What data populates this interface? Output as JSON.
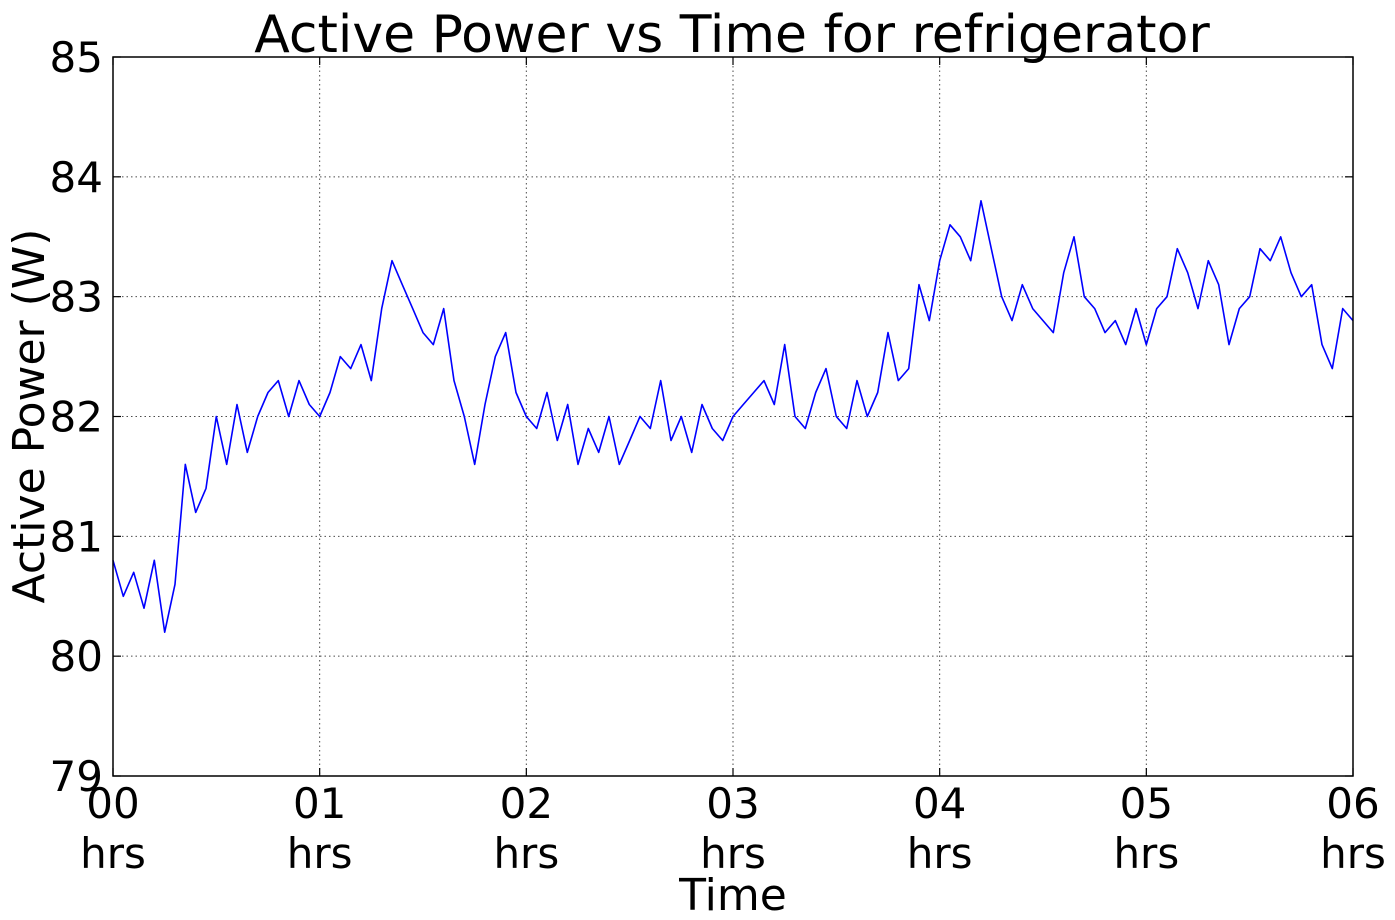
{
  "chart_data": {
    "type": "line",
    "title": "Active Power vs Time for refrigerator",
    "xlabel": "Time",
    "ylabel": "Active Power (W)",
    "xlim": [
      0,
      6
    ],
    "ylim": [
      79,
      85
    ],
    "grid": true,
    "x_ticks": [
      {
        "value": 0,
        "line1": "00",
        "line2": "hrs"
      },
      {
        "value": 1,
        "line1": "01",
        "line2": "hrs"
      },
      {
        "value": 2,
        "line1": "02",
        "line2": "hrs"
      },
      {
        "value": 3,
        "line1": "03",
        "line2": "hrs"
      },
      {
        "value": 4,
        "line1": "04",
        "line2": "hrs"
      },
      {
        "value": 5,
        "line1": "05",
        "line2": "hrs"
      },
      {
        "value": 6,
        "line1": "06",
        "line2": "hrs"
      }
    ],
    "y_ticks": [
      79,
      80,
      81,
      82,
      83,
      84,
      85
    ],
    "series": [
      {
        "color": "#0000ff",
        "x": [
          0.0,
          0.05,
          0.1,
          0.15,
          0.2,
          0.25,
          0.3,
          0.35,
          0.4,
          0.45,
          0.5,
          0.55,
          0.6,
          0.65,
          0.7,
          0.75,
          0.8,
          0.85,
          0.9,
          0.95,
          1.0,
          1.05,
          1.1,
          1.15,
          1.2,
          1.25,
          1.3,
          1.35,
          1.4,
          1.45,
          1.5,
          1.55,
          1.6,
          1.65,
          1.7,
          1.75,
          1.8,
          1.85,
          1.9,
          1.95,
          2.0,
          2.05,
          2.1,
          2.15,
          2.2,
          2.25,
          2.3,
          2.35,
          2.4,
          2.45,
          2.5,
          2.55,
          2.6,
          2.65,
          2.7,
          2.75,
          2.8,
          2.85,
          2.9,
          2.95,
          3.0,
          3.05,
          3.1,
          3.15,
          3.2,
          3.25,
          3.3,
          3.35,
          3.4,
          3.45,
          3.5,
          3.55,
          3.6,
          3.65,
          3.7,
          3.75,
          3.8,
          3.85,
          3.9,
          3.95,
          4.0,
          4.05,
          4.1,
          4.15,
          4.2,
          4.25,
          4.3,
          4.35,
          4.4,
          4.45,
          4.5,
          4.55,
          4.6,
          4.65,
          4.7,
          4.75,
          4.8,
          4.85,
          4.9,
          4.95,
          5.0,
          5.05,
          5.1,
          5.15,
          5.2,
          5.25,
          5.3,
          5.35,
          5.4,
          5.45,
          5.5,
          5.55,
          5.6,
          5.65,
          5.7,
          5.75,
          5.8,
          5.85,
          5.9,
          5.95,
          6.0
        ],
        "y": [
          80.8,
          80.5,
          80.7,
          80.4,
          80.8,
          80.2,
          80.6,
          81.6,
          81.2,
          81.4,
          82.0,
          81.6,
          82.1,
          81.7,
          82.0,
          82.2,
          82.3,
          82.0,
          82.3,
          82.1,
          82.0,
          82.2,
          82.5,
          82.4,
          82.6,
          82.3,
          82.9,
          83.3,
          83.1,
          82.9,
          82.7,
          82.6,
          82.9,
          82.3,
          82.0,
          81.6,
          82.1,
          82.5,
          82.7,
          82.2,
          82.0,
          81.9,
          82.2,
          81.8,
          82.1,
          81.6,
          81.9,
          81.7,
          82.0,
          81.6,
          81.8,
          82.0,
          81.9,
          82.3,
          81.8,
          82.0,
          81.7,
          82.1,
          81.9,
          81.8,
          82.0,
          82.1,
          82.2,
          82.3,
          82.1,
          82.6,
          82.0,
          81.9,
          82.2,
          82.4,
          82.0,
          81.9,
          82.3,
          82.0,
          82.2,
          82.7,
          82.3,
          82.4,
          83.1,
          82.8,
          83.3,
          83.6,
          83.5,
          83.3,
          83.8,
          83.4,
          83.0,
          82.8,
          83.1,
          82.9,
          82.8,
          82.7,
          83.2,
          83.5,
          83.0,
          82.9,
          82.7,
          82.8,
          82.6,
          82.9,
          82.6,
          82.9,
          83.0,
          83.4,
          83.2,
          82.9,
          83.3,
          83.1,
          82.6,
          82.9,
          83.0,
          83.4,
          83.3,
          83.5,
          83.2,
          83.0,
          83.1,
          82.6,
          82.4,
          82.9,
          82.8
        ]
      }
    ]
  }
}
